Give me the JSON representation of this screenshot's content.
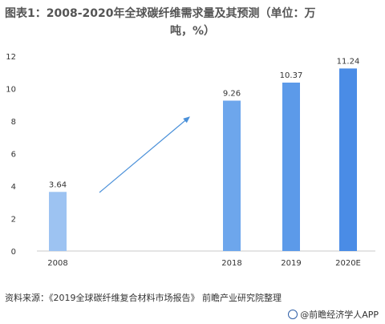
{
  "title_line1": "图表1：2008-2020年全球碳纤维需求量及其预测（单位：万",
  "title_line2": "吨，%）",
  "chart_data": {
    "type": "bar",
    "categories": [
      "2008",
      "2018",
      "2019",
      "2020E"
    ],
    "values": [
      3.64,
      9.26,
      10.37,
      11.24
    ],
    "data_labels": [
      "3.64",
      "9.26",
      "10.37",
      "11.24"
    ],
    "ylim": [
      0,
      12
    ],
    "yticks": [
      "0",
      "2",
      "4",
      "6",
      "8",
      "10",
      "12"
    ],
    "bar_colors": [
      "#9dc3f2",
      "#6da6ec",
      "#5c9ae9",
      "#4a8ce6"
    ],
    "arrow_color": "#4a90d9",
    "grid": false
  },
  "source_text": "资料来源：《2019全球碳纤维复合材料市场报告》 前瞻产业研究院整理",
  "brand_text": "@前瞻经济学人APP"
}
